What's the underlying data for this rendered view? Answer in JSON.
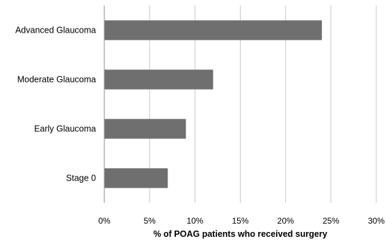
{
  "chart_data": {
    "type": "bar",
    "orientation": "horizontal",
    "categories": [
      "Advanced Glaucoma",
      "Moderate Glaucoma",
      "Early Glaucoma",
      "Stage 0"
    ],
    "values": [
      24,
      12,
      9,
      7
    ],
    "xlabel": "% of POAG patients who received surgery",
    "ylabel": "",
    "xlim": [
      0,
      30
    ],
    "x_ticks": [
      0,
      5,
      10,
      15,
      20,
      25,
      30
    ],
    "x_tick_labels": [
      "0%",
      "5%",
      "10%",
      "15%",
      "20%",
      "25%",
      "30%"
    ],
    "grid": "vertical",
    "legend": "none",
    "bar_color": "#6f6f6f"
  }
}
